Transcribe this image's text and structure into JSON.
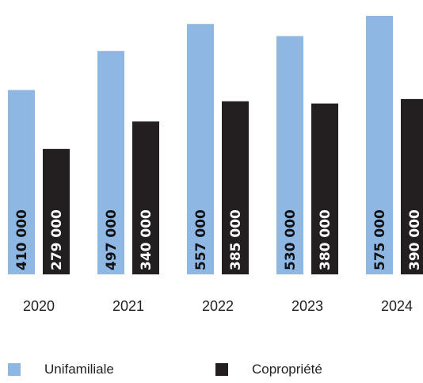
{
  "chart_data": {
    "type": "bar",
    "categories": [
      "2020",
      "2021",
      "2022",
      "2023",
      "2024"
    ],
    "series": [
      {
        "name": "Unifamiliale",
        "color": "#8fb7e3",
        "label_color": "#111111",
        "values": [
          410000,
          497000,
          557000,
          530000,
          575000
        ],
        "labels": [
          "410 000",
          "497 000",
          "557 000",
          "530 000",
          "575 000"
        ]
      },
      {
        "name": "Copropriété",
        "color": "#231f20",
        "label_color": "#ffffff",
        "values": [
          279000,
          340000,
          385000,
          380000,
          390000
        ],
        "labels": [
          "279 000",
          "340 000",
          "385 000",
          "380 000",
          "390 000"
        ]
      }
    ],
    "ylim": [
      0,
      600000
    ],
    "grid": false,
    "legend_position": "bottom"
  },
  "legend": {
    "items": [
      {
        "label": "Unifamiliale",
        "color": "#8fb7e3"
      },
      {
        "label": "Copropriété",
        "color": "#231f20"
      }
    ]
  }
}
